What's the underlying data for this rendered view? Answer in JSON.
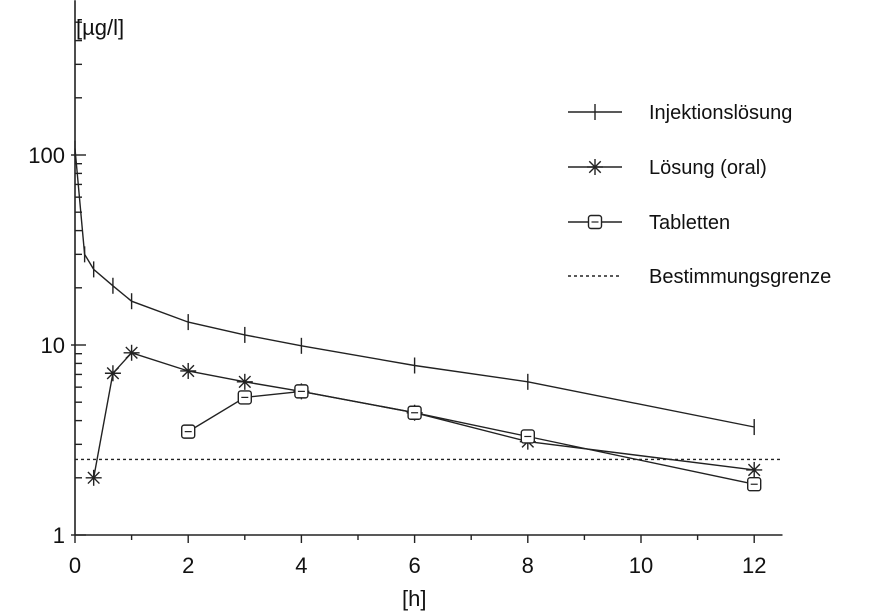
{
  "chart_data": {
    "type": "line",
    "title": "",
    "xlabel": "[h]",
    "ylabel": "[µg/l]",
    "x_scale": "linear",
    "y_scale": "log",
    "xlim": [
      0,
      12.5
    ],
    "ylim": [
      1,
      500
    ],
    "x_ticks": [
      "0",
      "2",
      "4",
      "6",
      "8",
      "10",
      "12"
    ],
    "y_ticks": [
      "1",
      "10",
      "100"
    ],
    "grid": false,
    "legend_position": "top-right",
    "series": [
      {
        "name": "Injektionslösung",
        "marker": "plus",
        "x": [
          0,
          0.17,
          0.33,
          0.67,
          1,
          2,
          3,
          4,
          6,
          8,
          12
        ],
        "y": [
          108,
          30,
          25,
          20.5,
          17,
          13.2,
          11.3,
          9.9,
          7.8,
          6.4,
          3.7
        ]
      },
      {
        "name": "Lösung (oral)",
        "marker": "asterisk",
        "x": [
          0.33,
          0.67,
          1,
          2,
          3,
          4,
          6,
          8,
          12
        ],
        "y": [
          2.0,
          7.1,
          9.1,
          7.3,
          6.4,
          5.7,
          4.4,
          3.1,
          2.2
        ]
      },
      {
        "name": "Tabletten",
        "marker": "square",
        "x": [
          2,
          3,
          4,
          6,
          8,
          12
        ],
        "y": [
          3.5,
          5.3,
          5.7,
          4.4,
          3.3,
          1.85
        ]
      },
      {
        "name": "Bestimmungsgrenze",
        "marker": "none",
        "dashed": true,
        "x": [
          0,
          12.5
        ],
        "y": [
          2.5,
          2.5
        ]
      }
    ]
  }
}
